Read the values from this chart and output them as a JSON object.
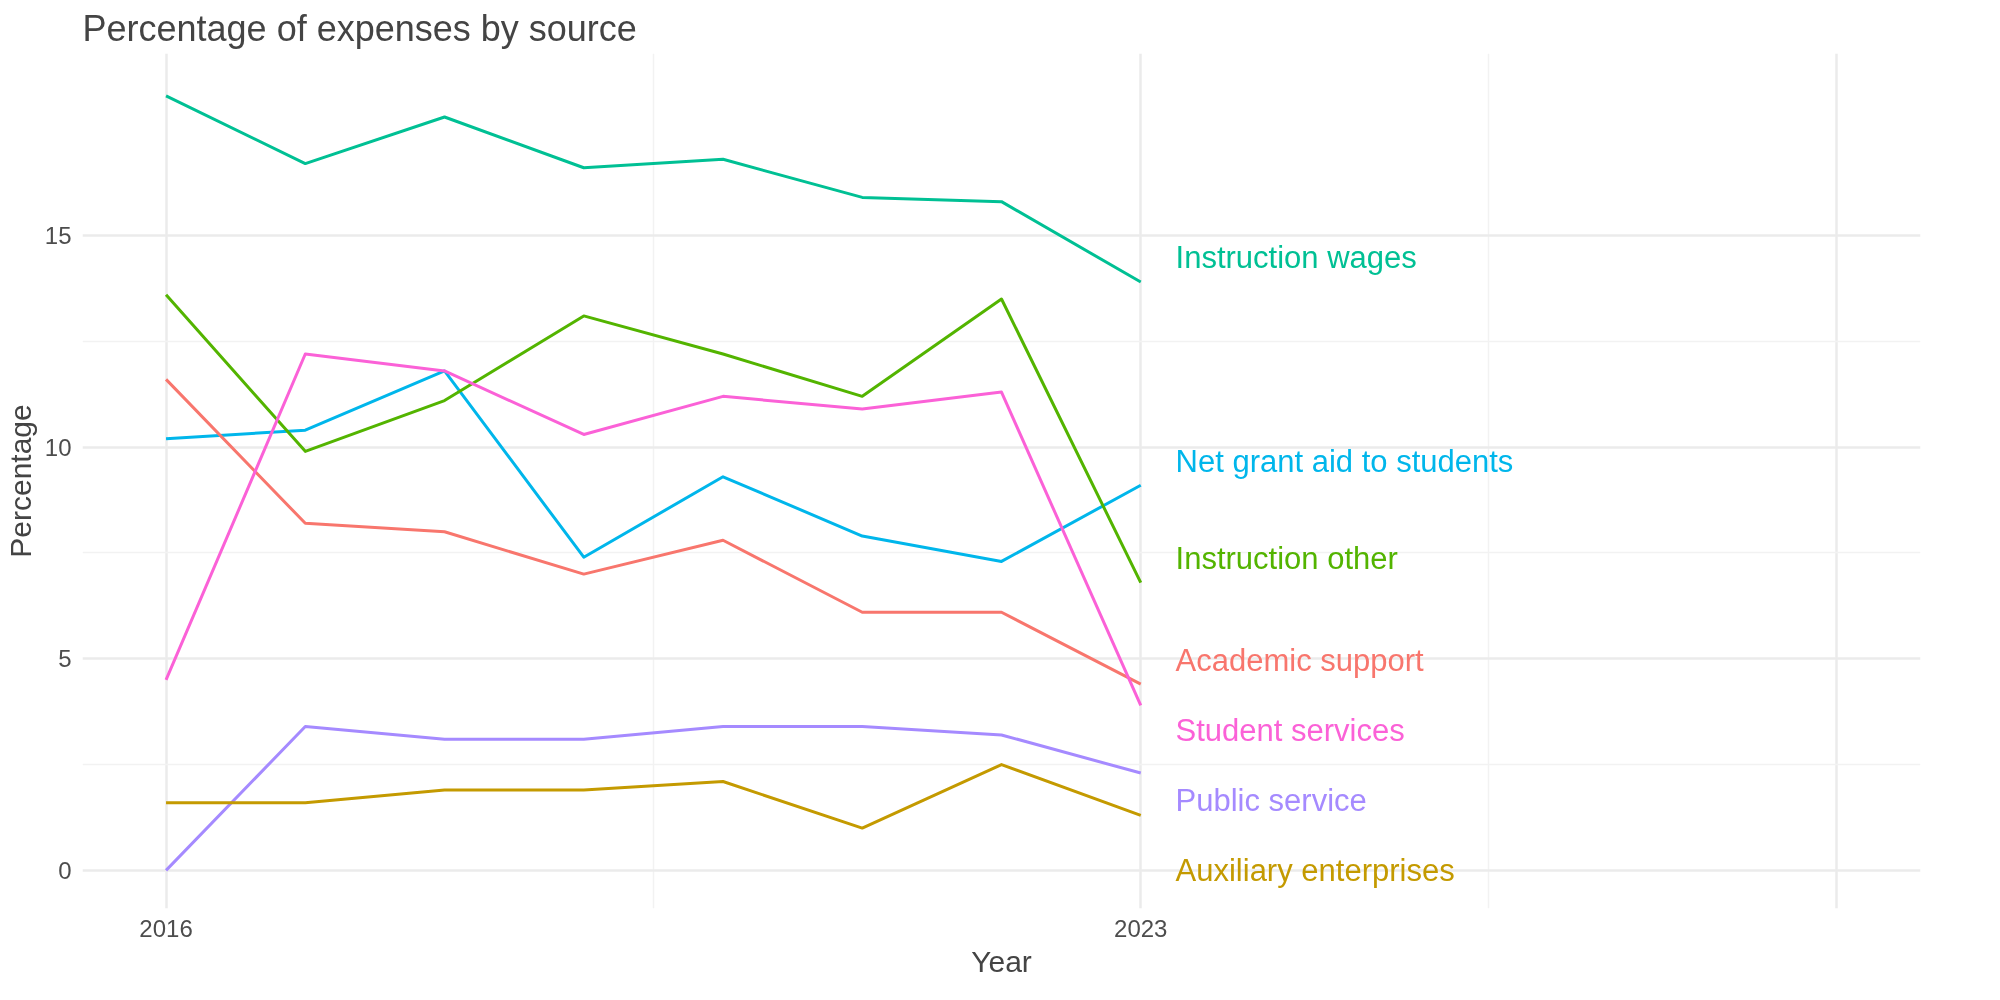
{
  "chart_data": {
    "type": "line",
    "title": "Percentage of expenses by source",
    "xlabel": "Year",
    "ylabel": "Percentage",
    "x": [
      2016,
      2017,
      2018,
      2019,
      2020,
      2021,
      2022,
      2023
    ],
    "series": [
      {
        "name": "Instruction wages",
        "color": "#00c094",
        "values": [
          18.3,
          16.7,
          17.8,
          16.6,
          16.8,
          15.9,
          15.8,
          13.9
        ]
      },
      {
        "name": "Net grant aid to students",
        "color": "#00b6eb",
        "values": [
          10.2,
          10.4,
          11.8,
          7.4,
          9.3,
          7.9,
          7.3,
          9.1
        ]
      },
      {
        "name": "Instruction other",
        "color": "#53b400",
        "values": [
          13.6,
          9.9,
          11.1,
          13.1,
          12.2,
          11.2,
          13.5,
          6.8
        ]
      },
      {
        "name": "Academic support",
        "color": "#f8766d",
        "values": [
          11.6,
          8.2,
          8.0,
          7.0,
          7.8,
          6.1,
          6.1,
          4.4
        ]
      },
      {
        "name": "Student services",
        "color": "#fb61d7",
        "values": [
          4.5,
          12.2,
          11.8,
          10.3,
          11.2,
          10.9,
          11.3,
          3.9
        ]
      },
      {
        "name": "Public service",
        "color": "#a58aff",
        "values": [
          0.0,
          3.4,
          3.1,
          3.1,
          3.4,
          3.4,
          3.2,
          2.3
        ]
      },
      {
        "name": "Auxiliary enterprises",
        "color": "#c49a00",
        "values": [
          1.6,
          1.6,
          1.9,
          1.9,
          2.1,
          1.0,
          2.5,
          1.3
        ]
      }
    ],
    "xlim": [
      2015.4,
      2028.6
    ],
    "xticks": [
      2016,
      2023,
      {
        "value": 2028,
        "label": null
      }
    ],
    "ylim": [
      -0.9,
      19.3
    ],
    "yticks": [
      0,
      5,
      10,
      15
    ],
    "grid": true,
    "marker": "none",
    "line_style": "solid"
  }
}
